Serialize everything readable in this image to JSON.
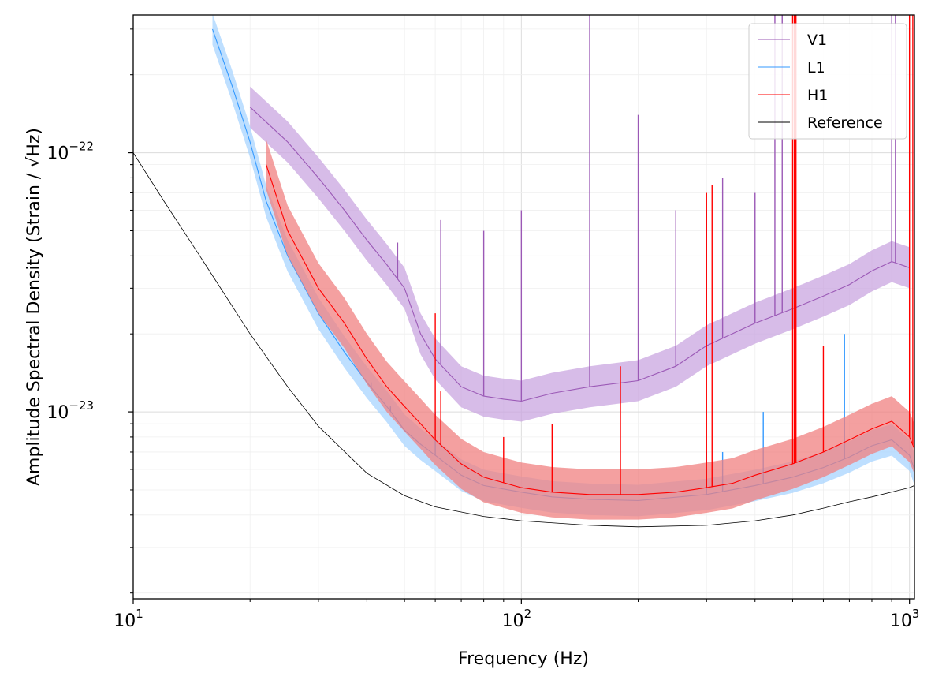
{
  "chart_data": {
    "type": "line",
    "title": "",
    "xlabel": "Frequency (Hz)",
    "ylabel": "Amplitude Spectral Density (Strain / √Hz)",
    "xscale": "log",
    "yscale": "log",
    "xlim": [
      10,
      1030
    ],
    "ylim": [
      1.9e-24,
      3.4e-22
    ],
    "grid": "on",
    "x_ticks": [
      {
        "value": 10,
        "base": "10",
        "exp": "1"
      },
      {
        "value": 100,
        "base": "10",
        "exp": "2"
      },
      {
        "value": 1000,
        "base": "10",
        "exp": "3"
      }
    ],
    "y_ticks": [
      {
        "value": 1e-23,
        "base": "10",
        "exp": "−23"
      },
      {
        "value": 1e-22,
        "base": "10",
        "exp": "−22"
      }
    ],
    "legend_position": "top-right",
    "series": [
      {
        "name": "V1",
        "color": "#9b59b6",
        "band_color": "#c9a6e0",
        "x": [
          20,
          25,
          30,
          35,
          40,
          45,
          50,
          55,
          60,
          70,
          80,
          90,
          100,
          120,
          150,
          200,
          250,
          300,
          400,
          500,
          600,
          700,
          800,
          900,
          1000
        ],
        "y": [
          1.5e-22,
          1.1e-22,
          8e-23,
          6e-23,
          4.6e-23,
          3.7e-23,
          3e-23,
          2e-23,
          1.6e-23,
          1.25e-23,
          1.15e-23,
          1.12e-23,
          1.1e-23,
          1.18e-23,
          1.25e-23,
          1.32e-23,
          1.5e-23,
          1.8e-23,
          2.2e-23,
          2.5e-23,
          2.8e-23,
          3.1e-23,
          3.5e-23,
          3.8e-23,
          3.6e-23
        ],
        "band_factor": 1.2,
        "spikes": [
          [
            48,
            4.5e-23
          ],
          [
            62,
            5.5e-23
          ],
          [
            80,
            5e-23
          ],
          [
            100,
            6e-23
          ],
          [
            150,
            3.4e-22
          ],
          [
            200,
            1.4e-22
          ],
          [
            250,
            6e-23
          ],
          [
            300,
            6e-23
          ],
          [
            330,
            8e-23
          ],
          [
            400,
            7e-23
          ],
          [
            450,
            3.4e-22
          ],
          [
            470,
            3.4e-22
          ],
          [
            900,
            3.4e-22
          ],
          [
            920,
            3.4e-22
          ]
        ]
      },
      {
        "name": "L1",
        "color": "#3399ff",
        "band_color": "#a8d4ff",
        "x": [
          16,
          18,
          20,
          22,
          25,
          30,
          35,
          40,
          45,
          50,
          55,
          60,
          70,
          80,
          100,
          120,
          150,
          200,
          300,
          400,
          500,
          600,
          700,
          800,
          900,
          1000,
          1030
        ],
        "y": [
          3e-22,
          1.8e-22,
          1.1e-22,
          6.5e-23,
          4e-23,
          2.4e-23,
          1.7e-23,
          1.3e-23,
          1.05e-23,
          8.5e-24,
          7.5e-24,
          6.8e-24,
          5.7e-24,
          5.2e-24,
          4.9e-24,
          4.7e-24,
          4.6e-24,
          4.55e-24,
          4.8e-24,
          5.2e-24,
          5.6e-24,
          6.1e-24,
          6.7e-24,
          7.4e-24,
          7.8e-24,
          6.8e-24,
          6e-24
        ],
        "band_factor": 1.15,
        "spikes": [
          [
            41,
            1.3e-23
          ],
          [
            46,
            1.05e-23
          ],
          [
            60,
            1e-23
          ],
          [
            300,
            7e-24
          ],
          [
            330,
            7e-24
          ],
          [
            420,
            1e-23
          ],
          [
            680,
            2e-23
          ]
        ]
      },
      {
        "name": "H1",
        "color": "#ff0000",
        "band_color": "#f08080",
        "x": [
          22,
          25,
          30,
          35,
          40,
          45,
          50,
          55,
          60,
          70,
          80,
          100,
          120,
          150,
          200,
          250,
          300,
          350,
          400,
          500,
          600,
          700,
          800,
          900,
          1000,
          1030
        ],
        "y": [
          9e-23,
          5e-23,
          3e-23,
          2.2e-23,
          1.6e-23,
          1.25e-23,
          1.05e-23,
          9e-24,
          7.8e-24,
          6.3e-24,
          5.6e-24,
          5.1e-24,
          4.9e-24,
          4.8e-24,
          4.8e-24,
          4.9e-24,
          5.1e-24,
          5.3e-24,
          5.7e-24,
          6.3e-24,
          7e-24,
          7.8e-24,
          8.6e-24,
          9.2e-24,
          8e-24,
          7.2e-24
        ],
        "band_factor": 1.25,
        "spikes": [
          [
            60,
            2.4e-23
          ],
          [
            62,
            1.2e-23
          ],
          [
            90,
            8e-24
          ],
          [
            120,
            9e-24
          ],
          [
            180,
            1.5e-23
          ],
          [
            300,
            7e-23
          ],
          [
            310,
            7.5e-23
          ],
          [
            500,
            1e-21
          ],
          [
            505,
            1e-21
          ],
          [
            510,
            1e-21
          ],
          [
            600,
            1.8e-23
          ],
          [
            1000,
            1e-21
          ],
          [
            1020,
            1e-21
          ]
        ]
      },
      {
        "name": "Reference",
        "color": "#000000",
        "band_color": "",
        "x": [
          10,
          12,
          15,
          20,
          25,
          30,
          40,
          50,
          60,
          80,
          100,
          150,
          200,
          300,
          400,
          500,
          600,
          700,
          800,
          1000,
          1030
        ],
        "y": [
          1e-22,
          6.5e-23,
          3.9e-23,
          2e-23,
          1.25e-23,
          8.8e-24,
          5.8e-24,
          4.75e-24,
          4.3e-24,
          3.95e-24,
          3.8e-24,
          3.65e-24,
          3.6e-24,
          3.65e-24,
          3.8e-24,
          4e-24,
          4.25e-24,
          4.5e-24,
          4.7e-24,
          5.1e-24,
          5.2e-24
        ],
        "band_factor": 1,
        "spikes": []
      }
    ]
  }
}
